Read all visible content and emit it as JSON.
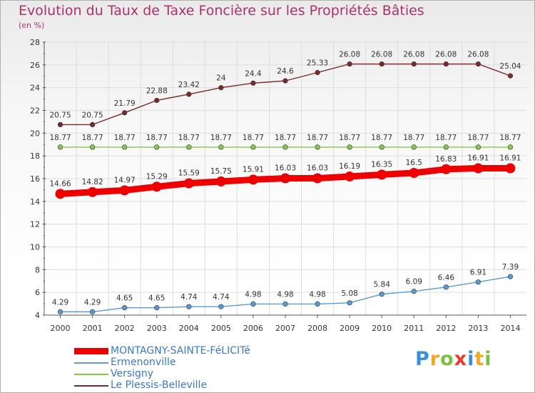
{
  "chart_data": {
    "type": "line",
    "title": "Evolution du Taux de Taxe Foncière sur les Propriétés Bâties",
    "subtitle": "(en %)",
    "x": [
      "2000",
      "2001",
      "2002",
      "2003",
      "2004",
      "2005",
      "2006",
      "2007",
      "2008",
      "2009",
      "2010",
      "2011",
      "2012",
      "2013",
      "2014"
    ],
    "ylim": [
      4,
      28
    ],
    "yticks": [
      "4",
      "6",
      "8",
      "10",
      "12",
      "14",
      "16",
      "18",
      "20",
      "22",
      "24",
      "26",
      "28"
    ],
    "grid": true,
    "legend_position": "bottom-left",
    "series": [
      {
        "name": "Le Plessis-Belleville",
        "color": "#7a2a2a",
        "values": [
          20.75,
          20.75,
          21.79,
          22.88,
          23.42,
          24,
          24.4,
          24.6,
          25.33,
          26.08,
          26.08,
          26.08,
          26.08,
          26.08,
          25.04
        ],
        "labels": [
          "20.75",
          "20.75",
          "21.79",
          "22.88",
          "23.42",
          "24",
          "24.4",
          "24.6",
          "25.33",
          "26.08",
          "26.08",
          "26.08",
          "26.08",
          "26.08",
          "25.04"
        ]
      },
      {
        "name": "Versigny",
        "color": "#84cc46",
        "values": [
          18.77,
          18.77,
          18.77,
          18.77,
          18.77,
          18.77,
          18.77,
          18.77,
          18.77,
          18.77,
          18.77,
          18.77,
          18.77,
          18.77,
          18.77
        ],
        "labels": [
          "18.77",
          "18.77",
          "18.77",
          "18.77",
          "18.77",
          "18.77",
          "18.77",
          "18.77",
          "18.77",
          "18.77",
          "18.77",
          "18.77",
          "18.77",
          "18.77",
          "18.77"
        ]
      },
      {
        "name": "MONTAGNY-SAINTE-FéLICITé",
        "color": "#ee0000",
        "values": [
          14.66,
          14.82,
          14.97,
          15.29,
          15.59,
          15.75,
          15.91,
          16.03,
          16.03,
          16.19,
          16.35,
          16.5,
          16.83,
          16.91,
          16.91
        ],
        "labels": [
          "14.66",
          "14.82",
          "14.97",
          "15.29",
          "15.59",
          "15.75",
          "15.91",
          "16.03",
          "16.03",
          "16.19",
          "16.35",
          "16.5",
          "16.83",
          "16.91",
          "16.91"
        ]
      },
      {
        "name": "Ermenonville",
        "color": "#5b9bd5",
        "values": [
          4.29,
          4.29,
          4.65,
          4.65,
          4.74,
          4.74,
          4.98,
          4.98,
          4.98,
          5.08,
          5.84,
          6.09,
          6.46,
          6.91,
          7.39
        ],
        "labels": [
          "4.29",
          "4.29",
          "4.65",
          "4.65",
          "4.74",
          "4.74",
          "4.98",
          "4.98",
          "4.98",
          "5.08",
          "5.84",
          "6.09",
          "6.46",
          "6.91",
          "7.39"
        ]
      }
    ]
  },
  "legend": [
    {
      "label": "MONTAGNY-SAINTE-FéLICITé",
      "color": "#ee0000"
    },
    {
      "label": "Ermenonville",
      "color": "#5b9bd5"
    },
    {
      "label": "Versigny",
      "color": "#84cc46"
    },
    {
      "label": "Le Plessis-Belleville",
      "color": "#7a2a2a"
    }
  ],
  "brand": {
    "letters": [
      "P",
      "r",
      "o",
      "x",
      "i",
      "t",
      "i"
    ],
    "colors": [
      "#3a8ee0",
      "#f5a623",
      "#7bc043",
      "#e63c2e",
      "#3a8ee0",
      "#f5a623",
      "#7bc043"
    ]
  }
}
